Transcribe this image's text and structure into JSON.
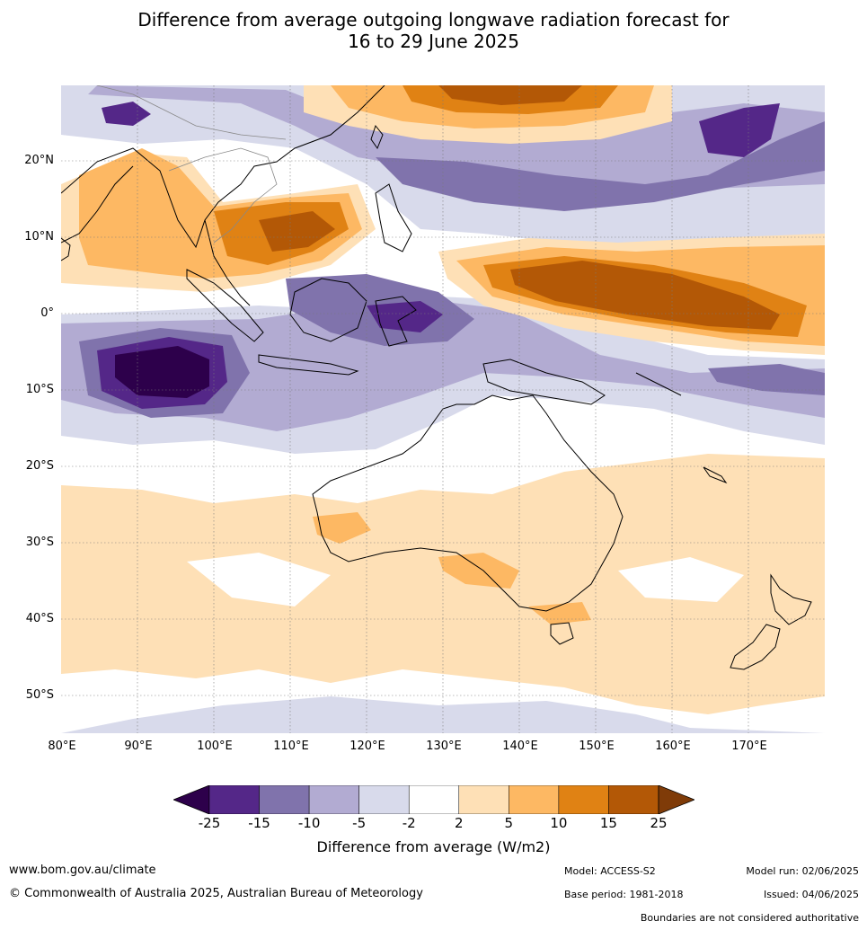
{
  "title_line1": "Difference from average outgoing longwave radiation forecast for",
  "title_line2": "16 to 29 June 2025",
  "lat_labels": [
    "20°N",
    "10°N",
    "0°",
    "10°S",
    "20°S",
    "30°S",
    "40°S",
    "50°S"
  ],
  "lon_labels": [
    "80°E",
    "90°E",
    "100°E",
    "110°E",
    "120°E",
    "130°E",
    "140°E",
    "150°E",
    "160°E",
    "170°E"
  ],
  "colorbar": {
    "ticks": [
      "-25",
      "-15",
      "-10",
      "-5",
      "-2",
      "2",
      "5",
      "10",
      "15",
      "25"
    ],
    "colors": [
      "#2d004b",
      "#542788",
      "#8073ac",
      "#b2abd2",
      "#d8daeb",
      "#ffffff",
      "#fee0b6",
      "#fdb863",
      "#e08214",
      "#b35806",
      "#7f3b08"
    ],
    "title": "Difference from average (W/m2)"
  },
  "footer": {
    "website": "www.bom.gov.au/climate",
    "copyright": "© Commonwealth of Australia 2025, Australian Bureau of Meteorology",
    "model": "Model: ACCESS-S2",
    "base_period": "Base period: 1981-2018",
    "model_run": "Model run: 02/06/2025",
    "issued": "Issued: 04/06/2025",
    "disclaimer": "Boundaries are not considered authoritative"
  }
}
